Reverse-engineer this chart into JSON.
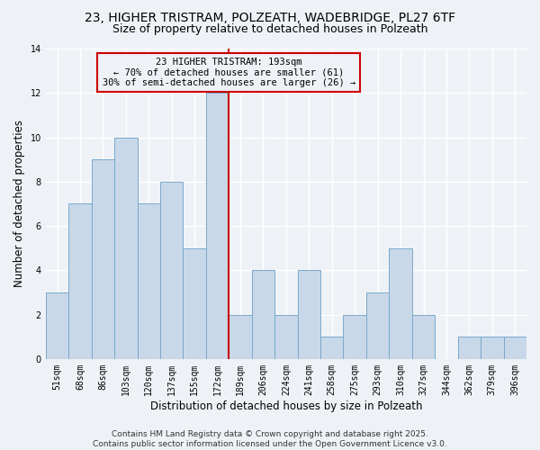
{
  "title": "23, HIGHER TRISTRAM, POLZEATH, WADEBRIDGE, PL27 6TF",
  "subtitle": "Size of property relative to detached houses in Polzeath",
  "xlabel": "Distribution of detached houses by size in Polzeath",
  "ylabel": "Number of detached properties",
  "categories": [
    "51sqm",
    "68sqm",
    "86sqm",
    "103sqm",
    "120sqm",
    "137sqm",
    "155sqm",
    "172sqm",
    "189sqm",
    "206sqm",
    "224sqm",
    "241sqm",
    "258sqm",
    "275sqm",
    "293sqm",
    "310sqm",
    "327sqm",
    "344sqm",
    "362sqm",
    "379sqm",
    "396sqm"
  ],
  "values": [
    3,
    7,
    9,
    10,
    7,
    8,
    5,
    12,
    2,
    4,
    2,
    4,
    1,
    2,
    3,
    5,
    2,
    0,
    1,
    1,
    1
  ],
  "bar_color": "#c8d8e8",
  "bar_edgecolor": "#7aa8cc",
  "reference_line_index": 8,
  "annotation_text": "23 HIGHER TRISTRAM: 193sqm\n← 70% of detached houses are smaller (61)\n30% of semi-detached houses are larger (26) →",
  "annotation_box_edgecolor": "#cc0000",
  "reference_line_color": "#cc0000",
  "ylim": [
    0,
    14
  ],
  "yticks": [
    0,
    2,
    4,
    6,
    8,
    10,
    12,
    14
  ],
  "footer": "Contains HM Land Registry data © Crown copyright and database right 2025.\nContains public sector information licensed under the Open Government Licence v3.0.",
  "background_color": "#eef2f7",
  "grid_color": "#ffffff",
  "title_fontsize": 10,
  "subtitle_fontsize": 9,
  "axis_label_fontsize": 8.5,
  "tick_fontsize": 7,
  "footer_fontsize": 6.5,
  "annotation_fontsize": 7.5
}
